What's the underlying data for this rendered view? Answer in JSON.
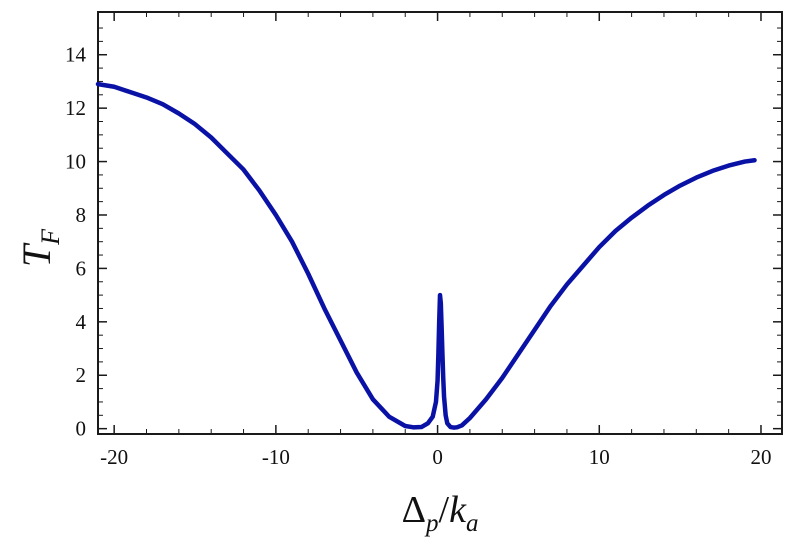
{
  "chart_data": {
    "type": "line",
    "xlabel": {
      "main": "Δ",
      "main_sub": "p",
      "sep": "/",
      "den": "k",
      "den_sub": "a"
    },
    "ylabel": {
      "main": "T",
      "sub": "F"
    },
    "xlim": [
      -21,
      21.3
    ],
    "ylim": [
      -0.2,
      15.6
    ],
    "xticks": [
      -20,
      -10,
      0,
      10,
      20
    ],
    "xtick_labels": [
      "-20",
      "-10",
      "0",
      "10",
      "20"
    ],
    "yticks": [
      0,
      2,
      4,
      6,
      8,
      10,
      12,
      14
    ],
    "ytick_labels": [
      "0",
      "2",
      "4",
      "6",
      "8",
      "10",
      "12",
      "14"
    ],
    "grid": false,
    "series": [
      {
        "color": "#0a12a6",
        "x": [
          -21,
          -20,
          -19,
          -18,
          -17,
          -16,
          -15,
          -14,
          -13,
          -12,
          -11,
          -10,
          -9,
          -8,
          -7,
          -6,
          -5,
          -4,
          -3,
          -2,
          -1.5,
          -1,
          -0.6,
          -0.3,
          -0.1,
          0,
          0.05,
          0.1,
          0.15,
          0.2,
          0.25,
          0.3,
          0.35,
          0.4,
          0.5,
          0.6,
          0.8,
          1,
          1.2,
          1.5,
          2,
          3,
          4,
          5,
          6,
          7,
          8,
          9,
          10,
          11,
          12,
          13,
          14,
          15,
          16,
          17,
          18,
          19,
          19.6
        ],
        "y": [
          12.9,
          12.8,
          12.6,
          12.4,
          12.15,
          11.8,
          11.4,
          10.9,
          10.3,
          9.7,
          8.9,
          8.0,
          7.0,
          5.8,
          4.5,
          3.3,
          2.1,
          1.1,
          0.45,
          0.1,
          0.05,
          0.06,
          0.2,
          0.45,
          1.0,
          1.8,
          2.8,
          4.0,
          5.0,
          4.7,
          3.8,
          2.8,
          1.9,
          1.2,
          0.5,
          0.2,
          0.06,
          0.04,
          0.05,
          0.12,
          0.4,
          1.1,
          1.9,
          2.8,
          3.7,
          4.6,
          5.4,
          6.1,
          6.8,
          7.4,
          7.9,
          8.35,
          8.75,
          9.1,
          9.4,
          9.65,
          9.85,
          10.0,
          10.05
        ]
      }
    ]
  }
}
